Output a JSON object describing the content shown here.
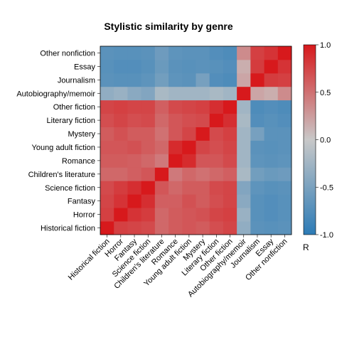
{
  "chart_data": {
    "type": "heatmap",
    "title": "Stylistic similarity by genre",
    "genres": [
      "Historical fiction",
      "Horror",
      "Fantasy",
      "Science fiction",
      "Children's literature",
      "Romance",
      "Young adult fiction",
      "Mystery",
      "Literary fiction",
      "Other fiction",
      "Autobiography/memoir",
      "Journalism",
      "Essay",
      "Other nonfiction"
    ],
    "matrix": [
      [
        1.0,
        0.78,
        0.75,
        0.72,
        0.55,
        0.62,
        0.65,
        0.62,
        0.7,
        0.75,
        -0.35,
        -0.7,
        -0.72,
        -0.7
      ],
      [
        0.78,
        1.0,
        0.85,
        0.8,
        0.55,
        0.62,
        0.65,
        0.68,
        0.75,
        0.78,
        -0.3,
        -0.72,
        -0.75,
        -0.72
      ],
      [
        0.75,
        0.85,
        1.0,
        0.88,
        0.6,
        0.6,
        0.68,
        0.62,
        0.7,
        0.75,
        -0.4,
        -0.72,
        -0.75,
        -0.72
      ],
      [
        0.72,
        0.8,
        0.88,
        1.0,
        0.65,
        0.55,
        0.62,
        0.62,
        0.72,
        0.75,
        -0.45,
        -0.68,
        -0.72,
        -0.7
      ],
      [
        0.55,
        0.55,
        0.6,
        0.65,
        1.0,
        0.45,
        0.55,
        0.5,
        0.55,
        0.6,
        -0.2,
        -0.55,
        -0.6,
        -0.58
      ],
      [
        0.62,
        0.62,
        0.6,
        0.55,
        0.45,
        1.0,
        0.9,
        0.65,
        0.65,
        0.72,
        -0.25,
        -0.68,
        -0.7,
        -0.68
      ],
      [
        0.65,
        0.65,
        0.68,
        0.62,
        0.55,
        0.9,
        1.0,
        0.75,
        0.7,
        0.75,
        -0.25,
        -0.7,
        -0.72,
        -0.7
      ],
      [
        0.62,
        0.68,
        0.62,
        0.62,
        0.5,
        0.65,
        0.75,
        1.0,
        0.72,
        0.78,
        -0.25,
        -0.52,
        -0.7,
        -0.7
      ],
      [
        0.7,
        0.75,
        0.7,
        0.72,
        0.55,
        0.65,
        0.7,
        0.72,
        1.0,
        0.88,
        -0.2,
        -0.75,
        -0.72,
        -0.75
      ],
      [
        0.75,
        0.78,
        0.75,
        0.75,
        0.6,
        0.72,
        0.75,
        0.78,
        0.88,
        1.0,
        -0.25,
        -0.78,
        -0.75,
        -0.78
      ],
      [
        -0.35,
        -0.3,
        -0.4,
        -0.45,
        -0.2,
        -0.25,
        -0.25,
        -0.25,
        -0.2,
        -0.25,
        1.0,
        0.2,
        0.15,
        0.35
      ],
      [
        -0.7,
        -0.72,
        -0.72,
        -0.68,
        -0.55,
        -0.68,
        -0.7,
        -0.52,
        -0.75,
        -0.78,
        0.2,
        1.0,
        0.8,
        0.78
      ],
      [
        -0.72,
        -0.75,
        -0.75,
        -0.72,
        -0.6,
        -0.7,
        -0.72,
        -0.7,
        -0.72,
        -0.75,
        0.15,
        0.8,
        1.0,
        0.85
      ],
      [
        -0.7,
        -0.72,
        -0.72,
        -0.7,
        -0.58,
        -0.68,
        -0.7,
        -0.7,
        -0.75,
        -0.78,
        0.35,
        0.78,
        0.85,
        1.0
      ]
    ],
    "color_scale": {
      "label": "R",
      "min": -1.0,
      "max": 1.0,
      "ticks": [
        1.0,
        0.5,
        0.0,
        -0.5,
        -1.0
      ],
      "tick_labels": [
        "1.0",
        "0.5",
        "0.0",
        "-0.5",
        "-1.0"
      ],
      "low_color": "#2c7bb6",
      "mid_color": "#c8c8c8",
      "high_color": "#d7191c"
    },
    "x_order": "left-to-right",
    "y_order": "bottom-to-top",
    "grid": false,
    "legend": "right"
  }
}
